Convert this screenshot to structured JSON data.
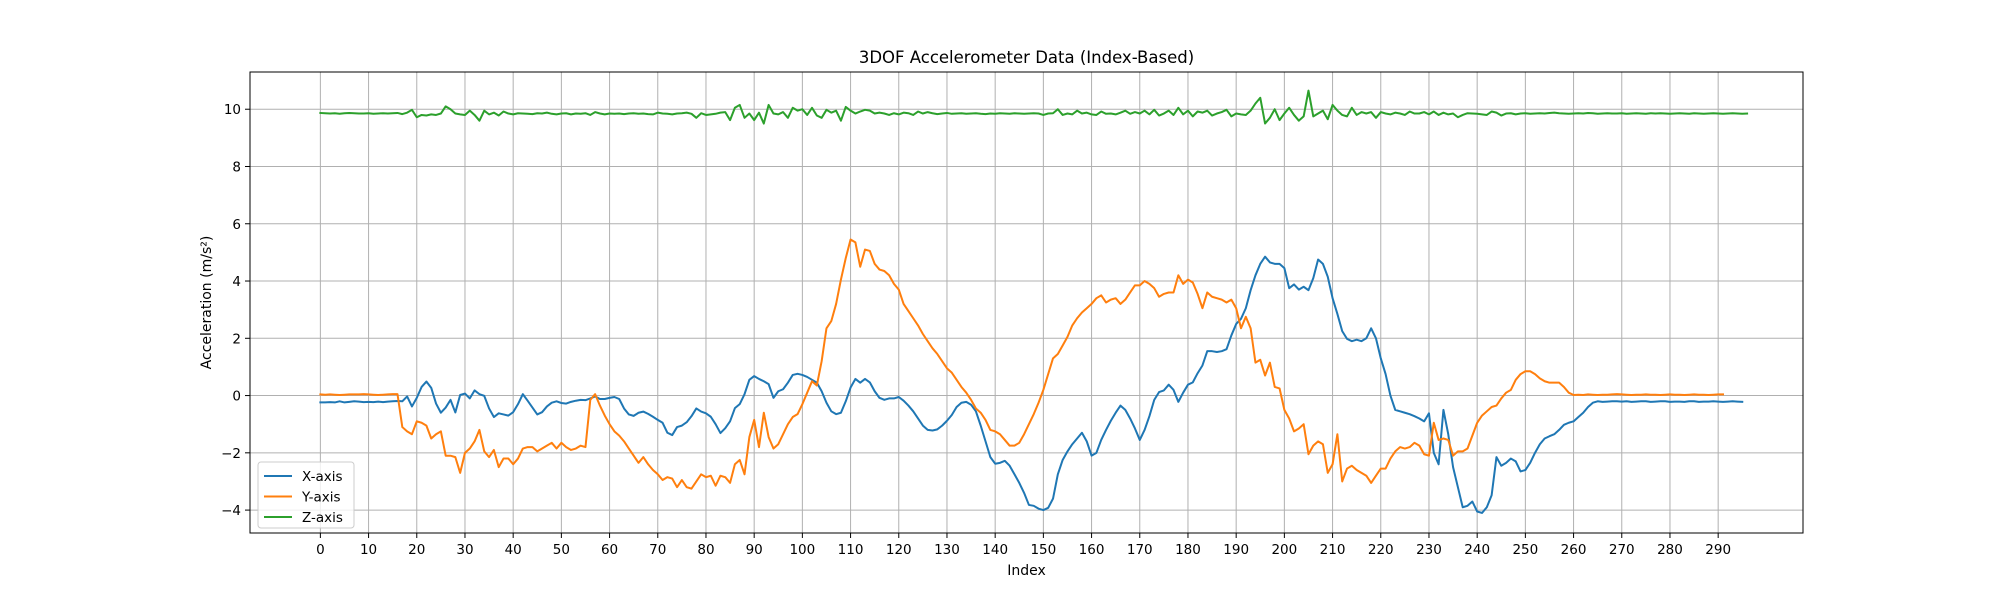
{
  "chart_data": {
    "type": "line",
    "title": "3DOF Accelerometer Data (Index-Based)",
    "xlabel": "Index",
    "ylabel": "Acceleration (m/s²)",
    "xlim": [
      -14.6,
      307.6
    ],
    "ylim": [
      -4.8,
      11.3
    ],
    "x_ticks": [
      0,
      10,
      20,
      30,
      40,
      50,
      60,
      70,
      80,
      90,
      100,
      110,
      120,
      130,
      140,
      150,
      160,
      170,
      180,
      190,
      200,
      210,
      220,
      230,
      240,
      250,
      260,
      270,
      280,
      290
    ],
    "y_ticks": [
      -4,
      -2,
      0,
      2,
      4,
      6,
      8,
      10
    ],
    "grid": true,
    "legend_position": "lower-left",
    "x_start": 0,
    "x_step": 1,
    "series": [
      {
        "name": "X-axis",
        "color": "#1f77b4",
        "values": [
          -0.24,
          -0.24,
          -0.23,
          -0.24,
          -0.2,
          -0.24,
          -0.22,
          -0.2,
          -0.21,
          -0.23,
          -0.22,
          -0.23,
          -0.21,
          -0.23,
          -0.21,
          -0.2,
          -0.19,
          -0.2,
          -0.03,
          -0.38,
          -0.08,
          0.3,
          0.49,
          0.27,
          -0.28,
          -0.6,
          -0.42,
          -0.15,
          -0.59,
          0.02,
          0.07,
          -0.1,
          0.18,
          0.05,
          -0.01,
          -0.45,
          -0.75,
          -0.62,
          -0.66,
          -0.7,
          -0.58,
          -0.3,
          0.05,
          -0.18,
          -0.42,
          -0.66,
          -0.58,
          -0.38,
          -0.25,
          -0.2,
          -0.26,
          -0.28,
          -0.22,
          -0.18,
          -0.15,
          -0.16,
          -0.1,
          -0.03,
          -0.12,
          -0.12,
          -0.08,
          -0.05,
          -0.12,
          -0.45,
          -0.66,
          -0.71,
          -0.6,
          -0.56,
          -0.64,
          -0.74,
          -0.85,
          -0.95,
          -1.3,
          -1.38,
          -1.1,
          -1.05,
          -0.93,
          -0.72,
          -0.45,
          -0.56,
          -0.62,
          -0.74,
          -1.0,
          -1.31,
          -1.14,
          -0.9,
          -0.44,
          -0.3,
          0.05,
          0.55,
          0.68,
          0.58,
          0.5,
          0.4,
          -0.08,
          0.15,
          0.22,
          0.45,
          0.72,
          0.76,
          0.72,
          0.65,
          0.55,
          0.45,
          0.15,
          -0.25,
          -0.55,
          -0.65,
          -0.6,
          -0.2,
          0.28,
          0.58,
          0.45,
          0.58,
          0.46,
          0.15,
          -0.08,
          -0.15,
          -0.1,
          -0.1,
          -0.05,
          -0.18,
          -0.35,
          -0.55,
          -0.8,
          -1.05,
          -1.2,
          -1.22,
          -1.18,
          -1.05,
          -0.88,
          -0.68,
          -0.4,
          -0.25,
          -0.22,
          -0.32,
          -0.55,
          -1.05,
          -1.6,
          -2.15,
          -2.38,
          -2.35,
          -2.28,
          -2.45,
          -2.75,
          -3.05,
          -3.4,
          -3.82,
          -3.85,
          -3.95,
          -4.0,
          -3.92,
          -3.6,
          -2.75,
          -2.25,
          -1.95,
          -1.7,
          -1.5,
          -1.3,
          -1.6,
          -2.1,
          -2.0,
          -1.55,
          -1.2,
          -0.88,
          -0.6,
          -0.35,
          -0.5,
          -0.8,
          -1.15,
          -1.55,
          -1.2,
          -0.72,
          -0.15,
          0.12,
          0.18,
          0.38,
          0.2,
          -0.22,
          0.1,
          0.38,
          0.46,
          0.78,
          1.05,
          1.55,
          1.55,
          1.52,
          1.55,
          1.62,
          2.1,
          2.5,
          2.68,
          3.05,
          3.68,
          4.2,
          4.6,
          4.85,
          4.65,
          4.6,
          4.6,
          4.45,
          3.75,
          3.88,
          3.7,
          3.8,
          3.68,
          4.1,
          4.75,
          4.6,
          4.15,
          3.4,
          2.85,
          2.25,
          1.98,
          1.9,
          1.95,
          1.9,
          2.0,
          2.35,
          2.0,
          1.3,
          0.75,
          0.0,
          -0.5,
          -0.55,
          -0.6,
          -0.65,
          -0.72,
          -0.8,
          -0.9,
          -0.62,
          -2.0,
          -2.4,
          -0.5,
          -1.35,
          -2.5,
          -3.2,
          -3.9,
          -3.85,
          -3.7,
          -4.05,
          -4.1,
          -3.9,
          -3.48,
          -2.15,
          -2.45,
          -2.35,
          -2.2,
          -2.3,
          -2.65,
          -2.6,
          -2.35,
          -2.0,
          -1.7,
          -1.5,
          -1.42,
          -1.35,
          -1.2,
          -1.02,
          -0.95,
          -0.9,
          -0.75,
          -0.6,
          -0.4,
          -0.25,
          -0.2,
          -0.22,
          -0.21,
          -0.2,
          -0.2,
          -0.21,
          -0.2,
          -0.22,
          -0.21,
          -0.2,
          -0.2,
          -0.22,
          -0.21,
          -0.2,
          -0.2,
          -0.22,
          -0.21,
          -0.21,
          -0.22,
          -0.2,
          -0.2,
          -0.22,
          -0.21,
          -0.21,
          -0.2,
          -0.21,
          -0.22,
          -0.21,
          -0.2,
          -0.21,
          -0.22
        ]
      },
      {
        "name": "Y-axis",
        "color": "#ff7f0e",
        "values": [
          0.04,
          0.03,
          0.04,
          0.03,
          0.02,
          0.03,
          0.04,
          0.04,
          0.04,
          0.05,
          0.04,
          0.03,
          0.02,
          0.03,
          0.04,
          0.05,
          0.05,
          -1.1,
          -1.25,
          -1.35,
          -0.9,
          -0.95,
          -1.05,
          -1.5,
          -1.35,
          -1.25,
          -2.1,
          -2.1,
          -2.15,
          -2.7,
          -2.0,
          -1.85,
          -1.6,
          -1.2,
          -1.95,
          -2.15,
          -1.9,
          -2.5,
          -2.2,
          -2.2,
          -2.4,
          -2.2,
          -1.85,
          -1.8,
          -1.8,
          -1.95,
          -1.85,
          -1.75,
          -1.65,
          -1.85,
          -1.65,
          -1.8,
          -1.9,
          -1.85,
          -1.75,
          -1.8,
          -0.15,
          0.05,
          -0.35,
          -0.7,
          -1.0,
          -1.25,
          -1.4,
          -1.6,
          -1.85,
          -2.1,
          -2.35,
          -2.15,
          -2.4,
          -2.6,
          -2.75,
          -2.95,
          -2.85,
          -2.9,
          -3.2,
          -2.95,
          -3.2,
          -3.25,
          -3.0,
          -2.75,
          -2.85,
          -2.8,
          -3.15,
          -2.8,
          -2.85,
          -3.05,
          -2.4,
          -2.25,
          -2.75,
          -1.45,
          -0.85,
          -1.8,
          -0.6,
          -1.45,
          -1.85,
          -1.7,
          -1.35,
          -1.0,
          -0.75,
          -0.65,
          -0.3,
          0.1,
          0.5,
          0.35,
          1.2,
          2.35,
          2.6,
          3.2,
          4.05,
          4.8,
          5.45,
          5.35,
          4.5,
          5.1,
          5.05,
          4.6,
          4.4,
          4.35,
          4.2,
          3.9,
          3.7,
          3.2,
          2.95,
          2.7,
          2.45,
          2.15,
          1.9,
          1.65,
          1.45,
          1.2,
          0.95,
          0.8,
          0.55,
          0.3,
          0.1,
          -0.15,
          -0.45,
          -0.6,
          -0.85,
          -1.2,
          -1.25,
          -1.35,
          -1.55,
          -1.75,
          -1.75,
          -1.65,
          -1.35,
          -1.0,
          -0.65,
          -0.25,
          0.2,
          0.75,
          1.3,
          1.45,
          1.75,
          2.05,
          2.45,
          2.7,
          2.9,
          3.05,
          3.2,
          3.4,
          3.5,
          3.25,
          3.35,
          3.4,
          3.2,
          3.35,
          3.6,
          3.85,
          3.85,
          4.0,
          3.9,
          3.75,
          3.45,
          3.55,
          3.6,
          3.6,
          4.2,
          3.9,
          4.05,
          3.95,
          3.55,
          3.05,
          3.6,
          3.45,
          3.4,
          3.35,
          3.25,
          3.35,
          3.05,
          2.35,
          2.75,
          2.35,
          1.15,
          1.25,
          0.7,
          1.15,
          0.3,
          0.25,
          -0.5,
          -0.8,
          -1.25,
          -1.15,
          -1.0,
          -2.05,
          -1.75,
          -1.6,
          -1.7,
          -2.7,
          -2.4,
          -1.35,
          -3.0,
          -2.55,
          -2.45,
          -2.6,
          -2.7,
          -2.8,
          -3.05,
          -2.8,
          -2.55,
          -2.55,
          -2.2,
          -1.95,
          -1.8,
          -1.85,
          -1.8,
          -1.65,
          -1.75,
          -2.05,
          -2.1,
          -0.95,
          -1.55,
          -1.5,
          -1.55,
          -2.1,
          -1.95,
          -1.95,
          -1.85,
          -1.4,
          -0.95,
          -0.7,
          -0.55,
          -0.4,
          -0.35,
          -0.1,
          0.1,
          0.2,
          0.55,
          0.75,
          0.85,
          0.85,
          0.75,
          0.6,
          0.5,
          0.45,
          0.45,
          0.45,
          0.3,
          0.1,
          0.02,
          0.03,
          0.02,
          0.04,
          0.03,
          0.02,
          0.03,
          0.03,
          0.04,
          0.05,
          0.04,
          0.03,
          0.02,
          0.03,
          0.03,
          0.04,
          0.03,
          0.03,
          0.02,
          0.03,
          0.04,
          0.03,
          0.03,
          0.02,
          0.03,
          0.04,
          0.03,
          0.03,
          0.02,
          0.03,
          0.04,
          0.04
        ]
      },
      {
        "name": "Z-axis",
        "color": "#2ca02c",
        "values": [
          9.87,
          9.86,
          9.85,
          9.86,
          9.84,
          9.86,
          9.87,
          9.86,
          9.85,
          9.85,
          9.86,
          9.84,
          9.85,
          9.86,
          9.85,
          9.86,
          9.87,
          9.83,
          9.88,
          9.98,
          9.72,
          9.8,
          9.78,
          9.82,
          9.8,
          9.85,
          10.1,
          10.0,
          9.85,
          9.82,
          9.8,
          9.95,
          9.8,
          9.6,
          9.95,
          9.82,
          9.88,
          9.78,
          9.92,
          9.85,
          9.82,
          9.86,
          9.85,
          9.84,
          9.83,
          9.86,
          9.85,
          9.88,
          9.84,
          9.82,
          9.85,
          9.86,
          9.82,
          9.85,
          9.84,
          9.86,
          9.8,
          9.9,
          9.85,
          9.82,
          9.85,
          9.84,
          9.85,
          9.83,
          9.85,
          9.86,
          9.84,
          9.85,
          9.83,
          9.82,
          9.88,
          9.85,
          9.84,
          9.82,
          9.85,
          9.86,
          9.88,
          9.84,
          9.7,
          9.86,
          9.8,
          9.82,
          9.84,
          9.88,
          9.9,
          9.62,
          10.05,
          10.15,
          9.7,
          9.85,
          9.62,
          9.88,
          9.5,
          10.15,
          9.85,
          9.82,
          9.9,
          9.7,
          10.05,
          9.95,
          10.0,
          9.8,
          10.05,
          9.78,
          9.7,
          9.98,
          9.88,
          9.95,
          9.6,
          10.08,
          9.95,
          9.85,
          9.92,
          9.98,
          9.95,
          9.85,
          9.88,
          9.85,
          9.8,
          9.86,
          9.82,
          9.88,
          9.86,
          9.8,
          9.92,
          9.85,
          9.9,
          9.86,
          9.83,
          9.85,
          9.87,
          9.84,
          9.85,
          9.86,
          9.84,
          9.85,
          9.86,
          9.84,
          9.83,
          9.85,
          9.84,
          9.86,
          9.85,
          9.84,
          9.86,
          9.85,
          9.84,
          9.85,
          9.86,
          9.85,
          9.8,
          9.85,
          9.86,
          10.0,
          9.8,
          9.85,
          9.82,
          9.95,
          9.85,
          9.88,
          9.82,
          9.8,
          9.92,
          9.84,
          9.85,
          9.82,
          9.88,
          9.95,
          9.84,
          9.9,
          9.85,
          9.95,
          9.82,
          9.98,
          9.78,
          9.85,
          9.95,
          9.8,
          10.05,
          9.82,
          9.95,
          9.75,
          9.92,
          9.88,
          9.95,
          9.78,
          9.85,
          9.9,
          9.98,
          9.75,
          9.85,
          9.82,
          9.8,
          9.95,
          10.2,
          10.4,
          9.5,
          9.7,
          10.0,
          9.62,
          9.85,
          10.05,
          9.8,
          9.6,
          9.75,
          10.65,
          9.75,
          9.85,
          9.95,
          9.65,
          10.15,
          9.95,
          9.8,
          9.75,
          10.05,
          9.8,
          9.9,
          9.85,
          9.9,
          9.7,
          9.9,
          9.85,
          9.82,
          9.88,
          9.85,
          9.8,
          9.92,
          9.85,
          9.85,
          9.9,
          9.82,
          9.92,
          9.8,
          9.88,
          9.82,
          9.85,
          9.72,
          9.8,
          9.86,
          9.85,
          9.84,
          9.82,
          9.8,
          9.92,
          9.88,
          9.78,
          9.85,
          9.86,
          9.82,
          9.85,
          9.86,
          9.84,
          9.85,
          9.86,
          9.85,
          9.87,
          9.88,
          9.86,
          9.85,
          9.84,
          9.85,
          9.86,
          9.85,
          9.87,
          9.86,
          9.84,
          9.85,
          9.86,
          9.85,
          9.85,
          9.86,
          9.84,
          9.85,
          9.86,
          9.85,
          9.84,
          9.86,
          9.85,
          9.86,
          9.85,
          9.84,
          9.85,
          9.86,
          9.85,
          9.84,
          9.86,
          9.85,
          9.84,
          9.85,
          9.86,
          9.85,
          9.84,
          9.85,
          9.86,
          9.85,
          9.84,
          9.85
        ]
      }
    ]
  }
}
